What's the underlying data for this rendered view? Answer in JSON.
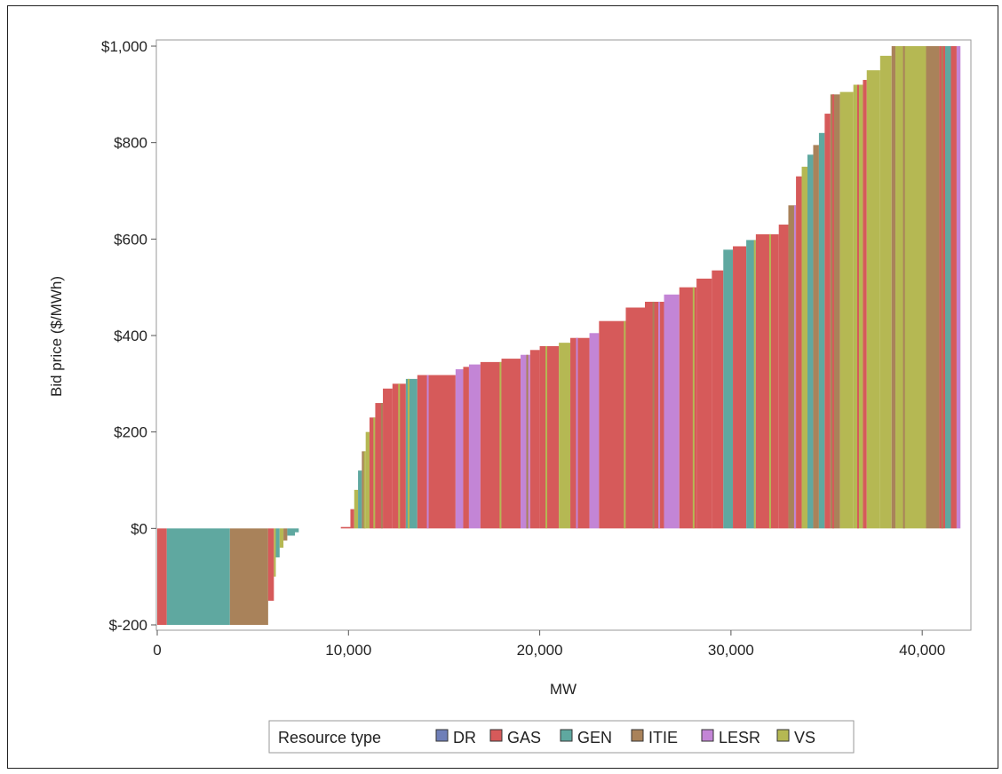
{
  "chart_data": {
    "type": "area",
    "description_type": "step-supply-curve",
    "xlabel": "MW",
    "ylabel": "Bid price ($/MWh)",
    "xlim": [
      0,
      42500
    ],
    "ylim": [
      -200,
      1000
    ],
    "x_ticks": [
      0,
      10000,
      20000,
      30000,
      40000
    ],
    "x_tick_labels": [
      "0",
      "10,000",
      "20,000",
      "30,000",
      "40,000"
    ],
    "y_ticks": [
      -200,
      0,
      200,
      400,
      600,
      800,
      1000
    ],
    "y_tick_labels": [
      "$-200",
      "$0",
      "$200",
      "$400",
      "$600",
      "$800",
      "$1,000"
    ],
    "grid": false,
    "legend": {
      "title": "Resource type",
      "placement": "bottom",
      "items": [
        {
          "name": "DR",
          "color": "#6f7fb8"
        },
        {
          "name": "GAS",
          "color": "#d65a5a"
        },
        {
          "name": "GEN",
          "color": "#5fa8a0"
        },
        {
          "name": "ITIE",
          "color": "#a9825a"
        },
        {
          "name": "LESR",
          "color": "#c385d6"
        },
        {
          "name": "VS",
          "color": "#b5b853"
        }
      ]
    },
    "segments": [
      {
        "x0": 0,
        "x1": 500,
        "y": -200,
        "type": "GAS"
      },
      {
        "x0": 500,
        "x1": 3800,
        "y": -200,
        "type": "GEN"
      },
      {
        "x0": 3800,
        "x1": 5800,
        "y": -200,
        "type": "ITIE"
      },
      {
        "x0": 5800,
        "x1": 6100,
        "y": -150,
        "type": "GAS"
      },
      {
        "x0": 6100,
        "x1": 6200,
        "y": -100,
        "type": "VS"
      },
      {
        "x0": 6200,
        "x1": 6400,
        "y": -60,
        "type": "GEN"
      },
      {
        "x0": 6400,
        "x1": 6600,
        "y": -40,
        "type": "VS"
      },
      {
        "x0": 6600,
        "x1": 6800,
        "y": -25,
        "type": "ITIE"
      },
      {
        "x0": 6800,
        "x1": 7200,
        "y": -15,
        "type": "GEN"
      },
      {
        "x0": 7200,
        "x1": 7400,
        "y": -8,
        "type": "GEN"
      },
      {
        "x0": 9600,
        "x1": 10100,
        "y": 3,
        "type": "GAS"
      },
      {
        "x0": 10100,
        "x1": 10300,
        "y": 40,
        "type": "GAS"
      },
      {
        "x0": 10300,
        "x1": 10500,
        "y": 80,
        "type": "VS"
      },
      {
        "x0": 10500,
        "x1": 10700,
        "y": 120,
        "type": "GEN"
      },
      {
        "x0": 10700,
        "x1": 10900,
        "y": 160,
        "type": "ITIE"
      },
      {
        "x0": 10900,
        "x1": 11100,
        "y": 200,
        "type": "VS"
      },
      {
        "x0": 11100,
        "x1": 11400,
        "y": 230,
        "type": "GAS"
      },
      {
        "x0": 11400,
        "x1": 11800,
        "y": 260,
        "type": "GAS"
      },
      {
        "x0": 11800,
        "x1": 12300,
        "y": 290,
        "type": "GAS"
      },
      {
        "x0": 12300,
        "x1": 13000,
        "y": 300,
        "type": "GAS"
      },
      {
        "x0": 13000,
        "x1": 13600,
        "y": 310,
        "type": "GEN"
      },
      {
        "x0": 13600,
        "x1": 15600,
        "y": 318,
        "type": "GAS"
      },
      {
        "x0": 15600,
        "x1": 16000,
        "y": 330,
        "type": "LESR"
      },
      {
        "x0": 16000,
        "x1": 16300,
        "y": 335,
        "type": "GAS"
      },
      {
        "x0": 16300,
        "x1": 16900,
        "y": 340,
        "type": "LESR"
      },
      {
        "x0": 16900,
        "x1": 18000,
        "y": 345,
        "type": "GAS"
      },
      {
        "x0": 18000,
        "x1": 19000,
        "y": 352,
        "type": "GAS"
      },
      {
        "x0": 19000,
        "x1": 19500,
        "y": 360,
        "type": "LESR"
      },
      {
        "x0": 19500,
        "x1": 20000,
        "y": 370,
        "type": "GAS"
      },
      {
        "x0": 20000,
        "x1": 21000,
        "y": 378,
        "type": "GAS"
      },
      {
        "x0": 21000,
        "x1": 21600,
        "y": 385,
        "type": "VS"
      },
      {
        "x0": 21600,
        "x1": 22600,
        "y": 395,
        "type": "GAS"
      },
      {
        "x0": 22600,
        "x1": 23100,
        "y": 405,
        "type": "LESR"
      },
      {
        "x0": 23100,
        "x1": 24500,
        "y": 430,
        "type": "GAS"
      },
      {
        "x0": 24500,
        "x1": 25500,
        "y": 458,
        "type": "GAS"
      },
      {
        "x0": 25500,
        "x1": 26500,
        "y": 470,
        "type": "GAS"
      },
      {
        "x0": 26500,
        "x1": 27300,
        "y": 485,
        "type": "LESR"
      },
      {
        "x0": 27300,
        "x1": 28200,
        "y": 500,
        "type": "GAS"
      },
      {
        "x0": 28200,
        "x1": 29000,
        "y": 518,
        "type": "GAS"
      },
      {
        "x0": 29000,
        "x1": 29600,
        "y": 535,
        "type": "GAS"
      },
      {
        "x0": 29600,
        "x1": 30100,
        "y": 578,
        "type": "GEN"
      },
      {
        "x0": 30100,
        "x1": 30800,
        "y": 585,
        "type": "GAS"
      },
      {
        "x0": 30800,
        "x1": 31300,
        "y": 598,
        "type": "GEN"
      },
      {
        "x0": 31300,
        "x1": 32500,
        "y": 610,
        "type": "GAS"
      },
      {
        "x0": 32500,
        "x1": 33000,
        "y": 630,
        "type": "GAS"
      },
      {
        "x0": 33000,
        "x1": 33400,
        "y": 670,
        "type": "ITIE"
      },
      {
        "x0": 33400,
        "x1": 33700,
        "y": 730,
        "type": "GAS"
      },
      {
        "x0": 33700,
        "x1": 34000,
        "y": 750,
        "type": "VS"
      },
      {
        "x0": 34000,
        "x1": 34300,
        "y": 775,
        "type": "GEN"
      },
      {
        "x0": 34300,
        "x1": 34600,
        "y": 795,
        "type": "ITIE"
      },
      {
        "x0": 34600,
        "x1": 34900,
        "y": 820,
        "type": "GEN"
      },
      {
        "x0": 34900,
        "x1": 35200,
        "y": 860,
        "type": "GAS"
      },
      {
        "x0": 35200,
        "x1": 35700,
        "y": 900,
        "type": "ITIE"
      },
      {
        "x0": 35700,
        "x1": 36400,
        "y": 905,
        "type": "VS"
      },
      {
        "x0": 36400,
        "x1": 36900,
        "y": 920,
        "type": "VS"
      },
      {
        "x0": 36900,
        "x1": 37100,
        "y": 930,
        "type": "GAS"
      },
      {
        "x0": 37100,
        "x1": 37800,
        "y": 950,
        "type": "VS"
      },
      {
        "x0": 37800,
        "x1": 38400,
        "y": 980,
        "type": "VS"
      },
      {
        "x0": 38400,
        "x1": 38600,
        "y": 1000,
        "type": "ITIE"
      },
      {
        "x0": 38600,
        "x1": 40200,
        "y": 1000,
        "type": "VS"
      },
      {
        "x0": 40200,
        "x1": 40900,
        "y": 1000,
        "type": "ITIE"
      },
      {
        "x0": 40900,
        "x1": 41200,
        "y": 1000,
        "type": "GAS"
      },
      {
        "x0": 41200,
        "x1": 41500,
        "y": 1000,
        "type": "GEN"
      },
      {
        "x0": 41500,
        "x1": 41800,
        "y": 1000,
        "type": "GAS"
      },
      {
        "x0": 41800,
        "x1": 42000,
        "y": 1000,
        "type": "LESR"
      }
    ],
    "stripes": [
      {
        "x": 10800,
        "type": "VS"
      },
      {
        "x": 11300,
        "type": "VS"
      },
      {
        "x": 11700,
        "type": "ITIE"
      },
      {
        "x": 12600,
        "type": "VS"
      },
      {
        "x": 13100,
        "type": "VS"
      },
      {
        "x": 14100,
        "type": "LESR"
      },
      {
        "x": 17900,
        "type": "VS"
      },
      {
        "x": 19300,
        "type": "ITIE"
      },
      {
        "x": 20300,
        "type": "VS"
      },
      {
        "x": 21900,
        "type": "LESR"
      },
      {
        "x": 24400,
        "type": "VS"
      },
      {
        "x": 25900,
        "type": "ITIE"
      },
      {
        "x": 26200,
        "type": "LESR"
      },
      {
        "x": 28000,
        "type": "VS"
      },
      {
        "x": 31200,
        "type": "VS"
      },
      {
        "x": 32000,
        "type": "VS"
      },
      {
        "x": 33300,
        "type": "LESR"
      },
      {
        "x": 35300,
        "type": "GAS"
      },
      {
        "x": 36600,
        "type": "GAS"
      },
      {
        "x": 39000,
        "type": "ITIE"
      },
      {
        "x": 41000,
        "type": "ITIE"
      }
    ]
  }
}
